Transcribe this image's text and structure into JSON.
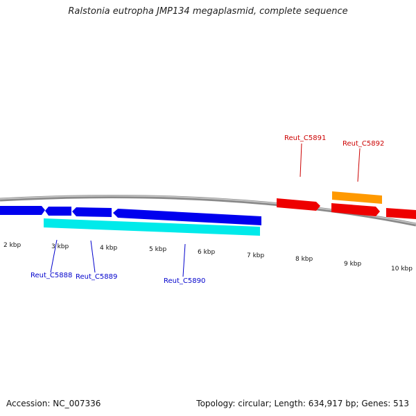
{
  "title": "Ralstonia eutropha JMP134 megaplasmid, complete sequence",
  "footer": {
    "accession": "Accession: NC_007336",
    "summary": "Topology: circular; Length: 634,917 bp; Genes: 513"
  },
  "colors": {
    "backbone": "#888888",
    "tick": "#228B22",
    "blue_gene": "#0000ee",
    "cyan_gene": "#00eeee",
    "red_gene": "#ee0000",
    "orange_gene": "#ff9900",
    "blue_label": "#0000cc",
    "red_label": "#cc0000"
  },
  "scale_labels": [
    "2 kbp",
    "3 kbp",
    "4 kbp",
    "5 kbp",
    "6 kbp",
    "7 kbp",
    "8 kbp",
    "9 kbp",
    "10 kbp"
  ],
  "genes": {
    "left_strand": [
      {
        "label": "Reut_C5888",
        "color_key": "blue_label"
      },
      {
        "label": "Reut_C5889",
        "color_key": "blue_label"
      },
      {
        "label": "Reut_C5890",
        "color_key": "blue_label"
      }
    ],
    "right_strand": [
      {
        "label": "Reut_C5891",
        "color_key": "red_label"
      },
      {
        "label": "Reut_C5892",
        "color_key": "red_label"
      }
    ]
  }
}
